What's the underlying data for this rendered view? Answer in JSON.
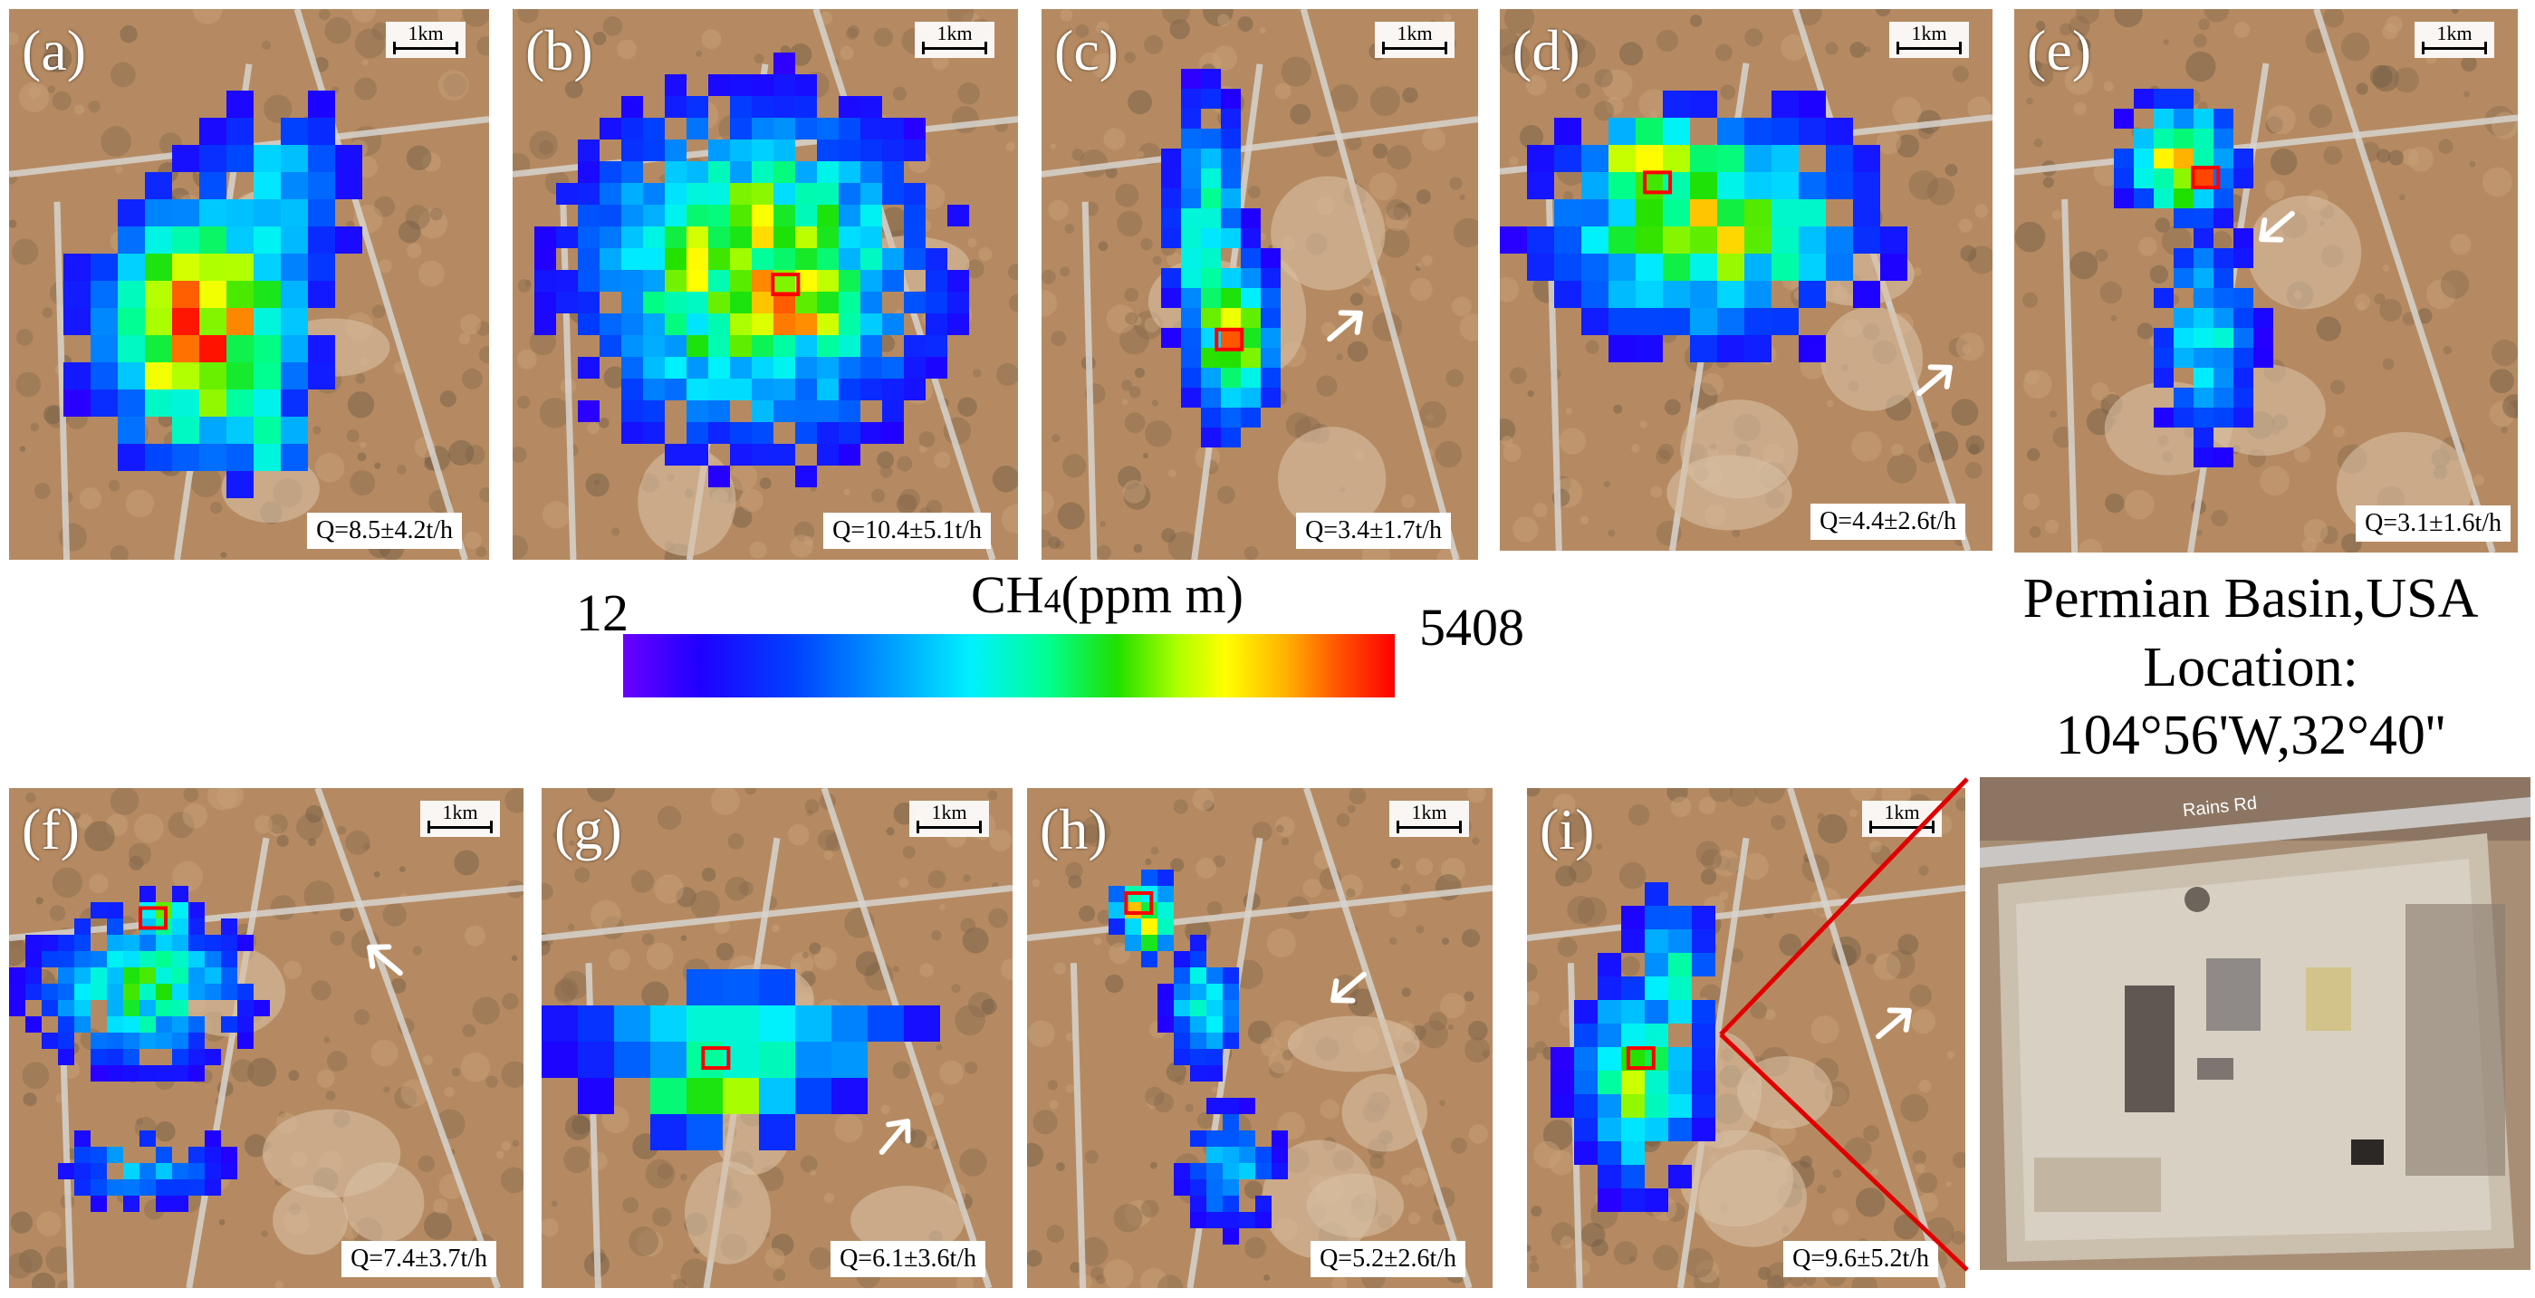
{
  "panels": [
    {
      "letter": "(a)",
      "q": "Q=8.5±4.2t/h",
      "scale": "1km"
    },
    {
      "letter": "(b)",
      "q": "Q=10.4±5.1t/h",
      "scale": "1km"
    },
    {
      "letter": "(c)",
      "q": "Q=3.4±1.7t/h",
      "scale": "1km"
    },
    {
      "letter": "(d)",
      "q": "Q=4.4±2.6t/h",
      "scale": "1km"
    },
    {
      "letter": "(e)",
      "q": "Q=3.1±1.6t/h",
      "scale": "1km"
    },
    {
      "letter": "(f)",
      "q": "Q=7.4±3.7t/h",
      "scale": "1km"
    },
    {
      "letter": "(g)",
      "q": "Q=6.1±3.6t/h",
      "scale": "1km"
    },
    {
      "letter": "(h)",
      "q": "Q=5.2±2.6t/h",
      "scale": "1km"
    },
    {
      "letter": "(i)",
      "q": "Q=9.6±5.2t/h",
      "scale": "1km"
    }
  ],
  "colorbar": {
    "min": "12",
    "max": "5408",
    "title": "CH4(ppm m)"
  },
  "location": {
    "line1": "Permian Basin,USA",
    "line2": "Location:",
    "line3": "104°56'W,32°40''"
  },
  "zoom_image": {
    "road_label": "Rains Rd"
  },
  "colors": {
    "enhancement_box": "#ff0000",
    "zoom_line": "#e00000",
    "desert": "#b58a62"
  }
}
